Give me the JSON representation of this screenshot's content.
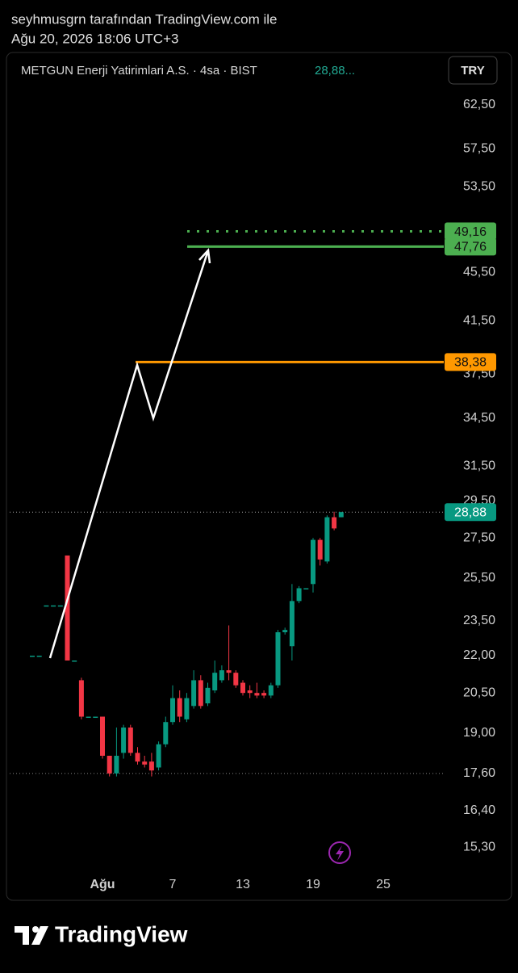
{
  "header": {
    "line1": "seyhmusgrn tarafından TradingView.com ile",
    "line2": "Ağu 20, 2026 18:06 UTC+3"
  },
  "legend": {
    "symbol": "METGUN Enerji Yatirimlari A.S. · 4sa · BIST",
    "price": "28,88..."
  },
  "currency_button": "TRY",
  "brand": "TradingView",
  "chart_data": {
    "type": "candlestick",
    "log_scale": true,
    "up_color": "#089981",
    "down_color": "#f23645",
    "categories": [
      null,
      null,
      null,
      null,
      null,
      null,
      null,
      null,
      null,
      null,
      "Ağu",
      null,
      null,
      null,
      null,
      null,
      null,
      null,
      null,
      null,
      "7",
      null,
      null,
      null,
      null,
      null,
      null,
      null,
      null,
      null,
      "13",
      null,
      null,
      null,
      null,
      null,
      null,
      null,
      null,
      null,
      "19",
      null,
      null,
      null,
      null,
      null,
      null,
      null,
      null,
      null,
      "25"
    ],
    "open": [
      22.0,
      22.0,
      24.2,
      24.2,
      24.2,
      26.6,
      21.8,
      21.0,
      19.6,
      19.6,
      19.6,
      18.2,
      17.6,
      18.3,
      19.2,
      18.3,
      18.0,
      18.0,
      17.8,
      18.6,
      19.4,
      20.3,
      19.5,
      20.0,
      21.0,
      20.1,
      20.6,
      21.0,
      21.4,
      21.3,
      20.9,
      20.6,
      20.5,
      20.5,
      20.4,
      20.8,
      23.0,
      22.4,
      24.4,
      25.0,
      25.2,
      27.4,
      26.3,
      28.6,
      28.6,
      null,
      null,
      null,
      null,
      null,
      null
    ],
    "high": [
      22.0,
      22.0,
      24.2,
      24.2,
      24.2,
      26.6,
      21.8,
      21.1,
      19.6,
      19.6,
      19.6,
      18.2,
      19.2,
      19.3,
      19.3,
      18.5,
      18.2,
      18.3,
      18.7,
      19.6,
      20.8,
      20.6,
      20.5,
      21.4,
      21.2,
      20.9,
      21.8,
      21.6,
      23.3,
      21.4,
      21.0,
      20.8,
      20.9,
      20.6,
      20.9,
      23.1,
      23.2,
      25.2,
      25.1,
      25.0,
      27.5,
      27.5,
      28.7,
      28.9,
      28.9,
      null,
      null,
      null,
      null,
      null,
      null
    ],
    "low": [
      22.0,
      22.0,
      24.2,
      24.2,
      24.2,
      21.8,
      21.8,
      19.5,
      19.6,
      19.6,
      18.1,
      17.5,
      17.5,
      18.1,
      18.2,
      17.9,
      17.8,
      17.5,
      17.7,
      18.5,
      19.3,
      19.4,
      19.4,
      19.9,
      19.9,
      20.0,
      20.5,
      20.9,
      21.0,
      20.7,
      20.4,
      20.3,
      20.3,
      20.3,
      20.3,
      20.7,
      22.9,
      21.8,
      24.3,
      25.0,
      24.8,
      26.1,
      26.2,
      27.9,
      28.6,
      null,
      null,
      null,
      null,
      null,
      null
    ],
    "close": [
      22.0,
      22.0,
      24.2,
      24.2,
      24.2,
      21.8,
      21.8,
      19.6,
      19.6,
      19.6,
      18.2,
      17.6,
      18.2,
      19.2,
      18.3,
      18.0,
      17.9,
      17.7,
      18.6,
      19.4,
      20.3,
      19.6,
      20.3,
      21.0,
      20.0,
      20.7,
      21.3,
      21.4,
      21.3,
      20.8,
      20.5,
      20.5,
      20.4,
      20.4,
      20.8,
      23.0,
      23.1,
      24.4,
      25.0,
      25.0,
      27.4,
      26.4,
      28.6,
      28.0,
      28.88,
      null,
      null,
      null,
      null,
      null,
      null
    ],
    "ylim": [
      14.6,
      65.4
    ],
    "yticks": [
      {
        "value": 62.5,
        "label": "62,50"
      },
      {
        "value": 57.5,
        "label": "57,50"
      },
      {
        "value": 53.5,
        "label": "53,50"
      },
      {
        "value": 45.5,
        "label": "45,50"
      },
      {
        "value": 41.5,
        "label": "41,50"
      },
      {
        "value": 37.5,
        "label": "37,50"
      },
      {
        "value": 34.5,
        "label": "34,50"
      },
      {
        "value": 31.5,
        "label": "31,50"
      },
      {
        "value": 29.5,
        "label": "29,50"
      },
      {
        "value": 27.5,
        "label": "27,50"
      },
      {
        "value": 25.5,
        "label": "25,50"
      },
      {
        "value": 23.5,
        "label": "23,50"
      },
      {
        "value": 22,
        "label": "22,00"
      },
      {
        "value": 20.5,
        "label": "20,50"
      },
      {
        "value": 19,
        "label": "19,00"
      },
      {
        "value": 17.6,
        "label": "17,60"
      },
      {
        "value": 16.4,
        "label": "16,40"
      },
      {
        "value": 15.3,
        "label": "15,30"
      }
    ],
    "levels": [
      {
        "value": 49.16,
        "label": "49,16",
        "color": "#4caf50",
        "style": "dotted"
      },
      {
        "value": 47.76,
        "label": "47,76",
        "color": "#4caf50",
        "style": "solid"
      },
      {
        "value": 38.38,
        "label": "38,38",
        "color": "#ff9800",
        "style": "solid"
      }
    ],
    "last_price": {
      "value": 28.88,
      "label": "28,88",
      "color": "#089981"
    },
    "session_low": 17.6
  }
}
